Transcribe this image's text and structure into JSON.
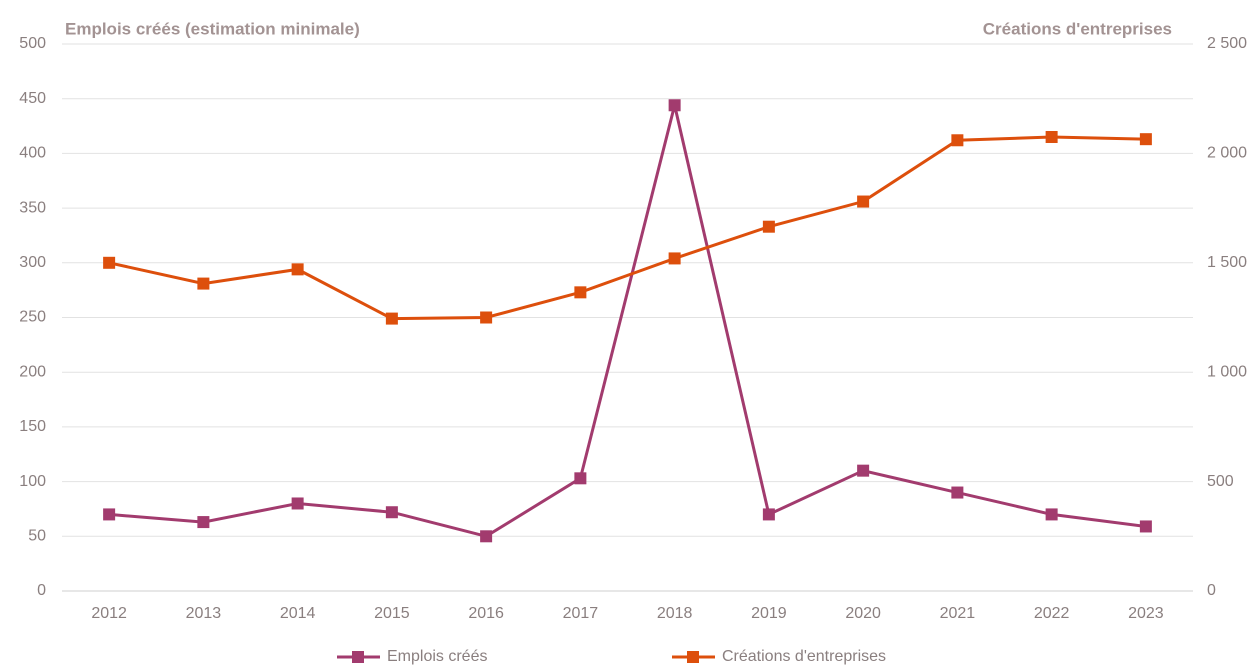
{
  "chart_data": {
    "type": "line",
    "title": "Emplois créés (estimation minimale)",
    "y2_title": "Créations d'entreprises",
    "categories": [
      "2012",
      "2013",
      "2014",
      "2015",
      "2016",
      "2017",
      "2018",
      "2019",
      "2020",
      "2021",
      "2022",
      "2023"
    ],
    "series": [
      {
        "name": "Emplois créés",
        "color": "#a23b6e",
        "values": [
          70,
          63,
          80,
          72,
          50,
          103,
          444,
          70,
          110,
          90,
          70,
          59
        ]
      },
      {
        "name": "Créations d'entreprises",
        "color": "#dd4f0c",
        "axis": "y2",
        "values": [
          1500,
          1405,
          1470,
          1245,
          1250,
          1365,
          1520,
          1665,
          1780,
          2060,
          2075,
          2065
        ]
      }
    ],
    "ylim": [
      0,
      500
    ],
    "yticks": [
      0,
      50,
      100,
      150,
      200,
      250,
      300,
      350,
      400,
      450,
      500
    ],
    "y2lim": [
      0,
      2500
    ],
    "y2ticks": [
      0,
      500,
      {
        "value": 1000,
        "label": "1 000"
      },
      {
        "value": 1500,
        "label": "1 500"
      },
      {
        "value": 2000,
        "label": "2 000"
      },
      {
        "value": 2500,
        "label": "2 500"
      }
    ],
    "grid": true,
    "legend": "bottom"
  }
}
